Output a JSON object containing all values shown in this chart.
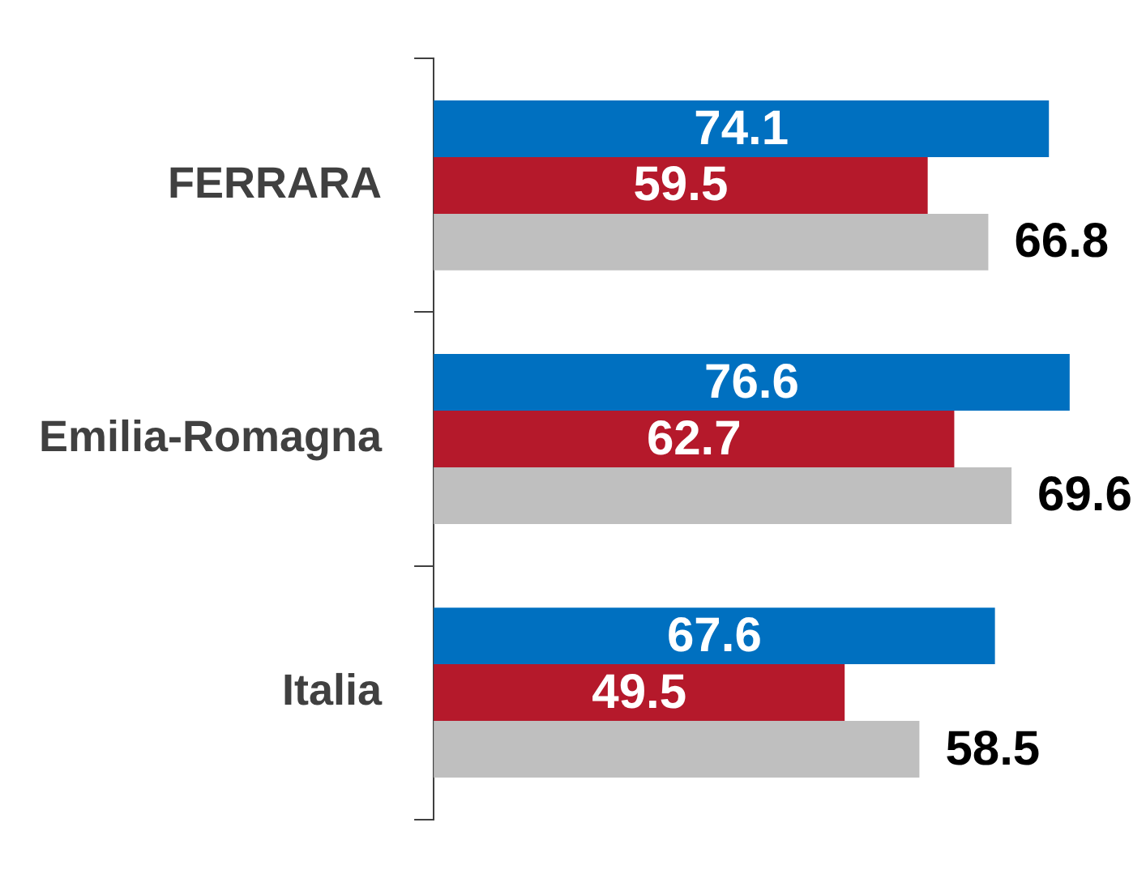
{
  "chart_data": {
    "type": "bar",
    "orientation": "horizontal",
    "categories": [
      "FERRARA",
      "Emilia-Romagna",
      "Italia"
    ],
    "series": [
      {
        "color": "#0070c0",
        "values": [
          74.1,
          76.6,
          67.6
        ]
      },
      {
        "color": "#b5192b",
        "values": [
          59.5,
          62.7,
          49.5
        ]
      },
      {
        "color": "#bfbfbf",
        "values": [
          66.8,
          69.6,
          58.5
        ]
      }
    ],
    "data_labels": true,
    "legend": false,
    "grid": false,
    "tick_labels": "y"
  }
}
